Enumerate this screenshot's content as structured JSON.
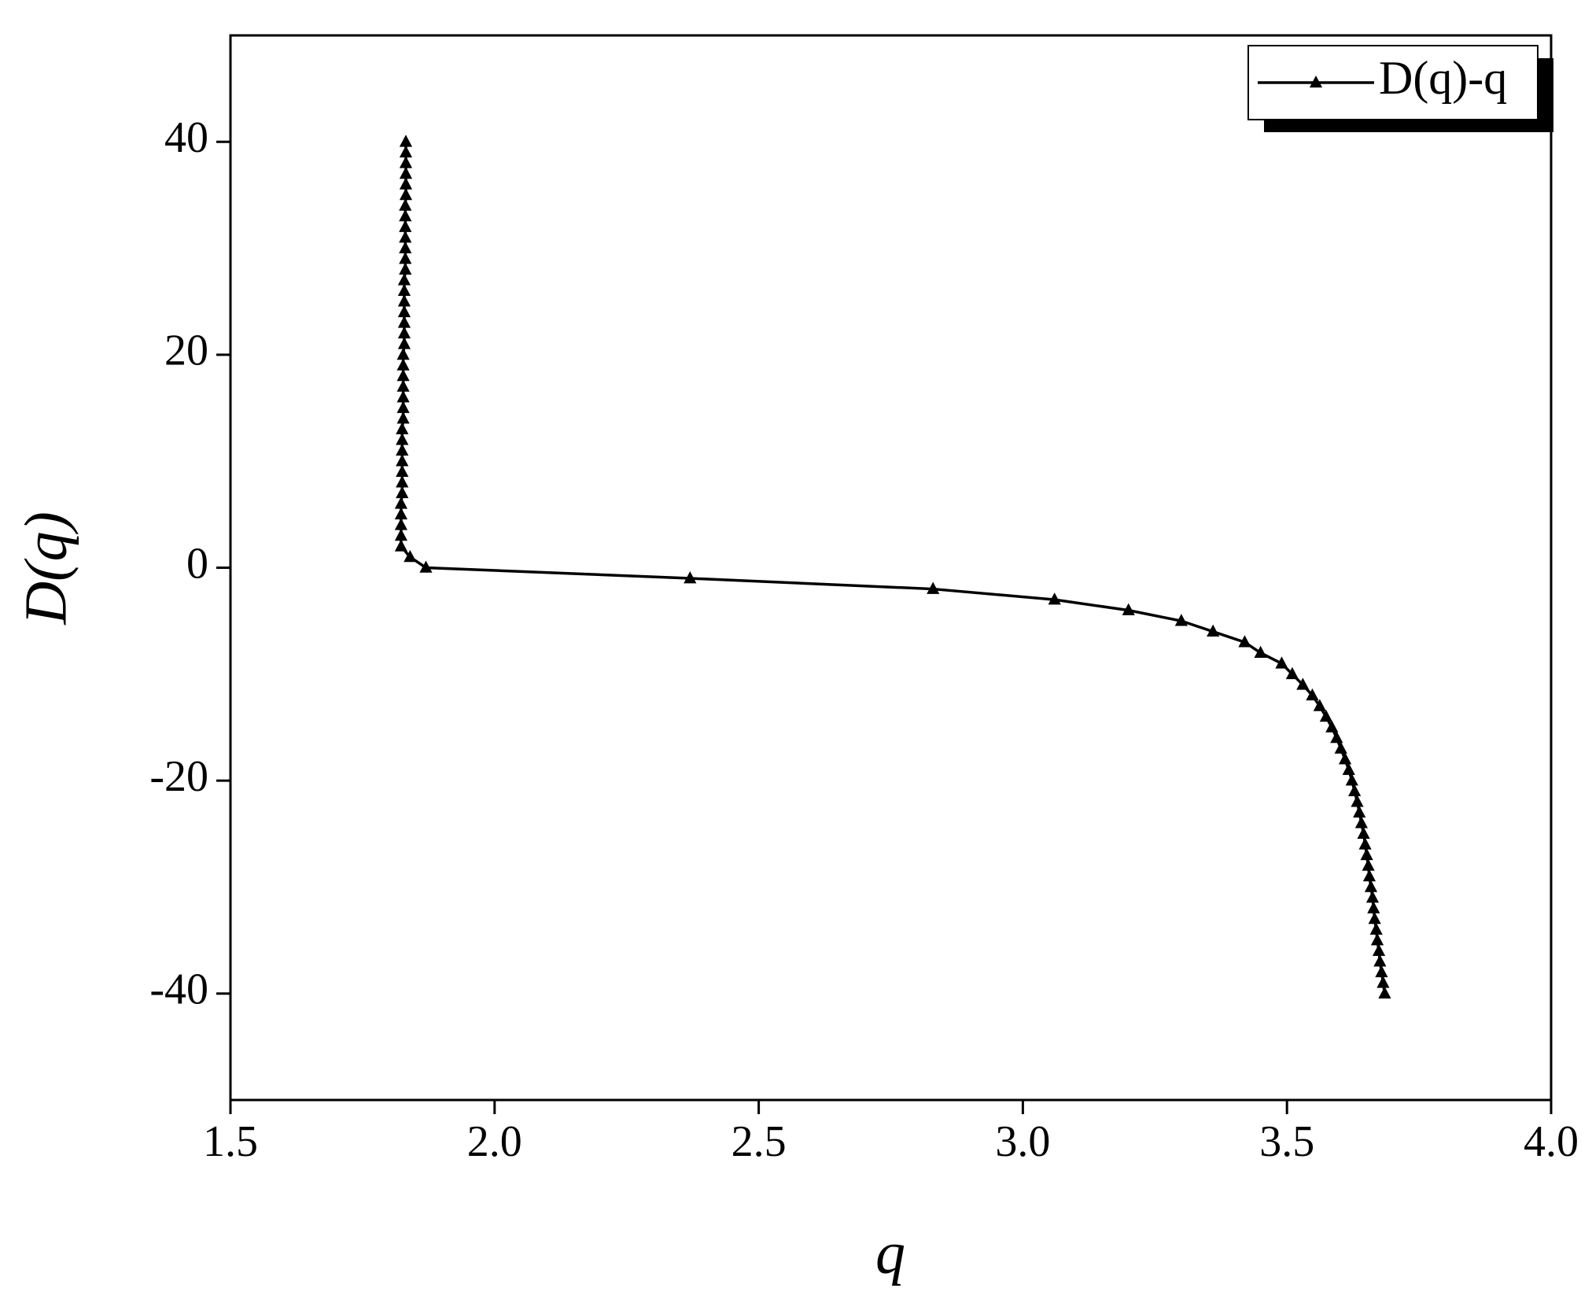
{
  "chart_data": {
    "type": "line",
    "x_label": "q",
    "y_label": "D(q)",
    "x": [
      1.832,
      1.832,
      1.832,
      1.832,
      1.832,
      1.832,
      1.831,
      1.831,
      1.831,
      1.831,
      1.831,
      1.831,
      1.831,
      1.829,
      1.829,
      1.829,
      1.829,
      1.829,
      1.829,
      1.829,
      1.827,
      1.827,
      1.827,
      1.827,
      1.827,
      1.827,
      1.827,
      1.825,
      1.825,
      1.825,
      1.825,
      1.825,
      1.825,
      1.825,
      1.823,
      1.823,
      1.823,
      1.823,
      1.823,
      1.84,
      1.87,
      2.37,
      2.83,
      3.06,
      3.2,
      3.3,
      3.36,
      3.42,
      3.45,
      3.49,
      3.51,
      3.53,
      3.548,
      3.562,
      3.574,
      3.585,
      3.594,
      3.602,
      3.61,
      3.617,
      3.623,
      3.628,
      3.633,
      3.637,
      3.641,
      3.645,
      3.648,
      3.651,
      3.654,
      3.656,
      3.659,
      3.662,
      3.664,
      3.666,
      3.669,
      3.671,
      3.674,
      3.676,
      3.679,
      3.682,
      3.685
    ],
    "series": [
      {
        "name": "D(q)-q",
        "color": "#000000",
        "marker": "triangle",
        "values": [
          40,
          39,
          38,
          37,
          36,
          35,
          34,
          33,
          32,
          31,
          30,
          29,
          28,
          27,
          26,
          25,
          24,
          23,
          22,
          21,
          20,
          19,
          18,
          17,
          16,
          15,
          14,
          13,
          12,
          11,
          10,
          9,
          8,
          7,
          6,
          5,
          4,
          3,
          2,
          1,
          0,
          -1,
          -2,
          -3,
          -4,
          -5,
          -6,
          -7,
          -8,
          -9,
          -10,
          -11,
          -12,
          -13,
          -14,
          -15,
          -16,
          -17,
          -18,
          -19,
          -20,
          -21,
          -22,
          -23,
          -24,
          -25,
          -26,
          -27,
          -28,
          -29,
          -30,
          -31,
          -32,
          -33,
          -34,
          -35,
          -36,
          -37,
          -38,
          -39,
          -40
        ]
      }
    ],
    "xlim": [
      1.5,
      4.0
    ],
    "xticks": [
      {
        "value": 1.5,
        "label": "1.5"
      },
      {
        "value": 2,
        "label": "2.0"
      },
      {
        "value": 2.5,
        "label": "2.5"
      },
      {
        "value": 3,
        "label": "3.0"
      },
      {
        "value": 3.5,
        "label": "3.5"
      },
      {
        "value": 4,
        "label": "4.0"
      }
    ],
    "ylim": [
      -50,
      50
    ],
    "yticks": [
      40,
      20,
      0,
      -20,
      -40
    ],
    "legend": "top-right",
    "grid": false
  }
}
